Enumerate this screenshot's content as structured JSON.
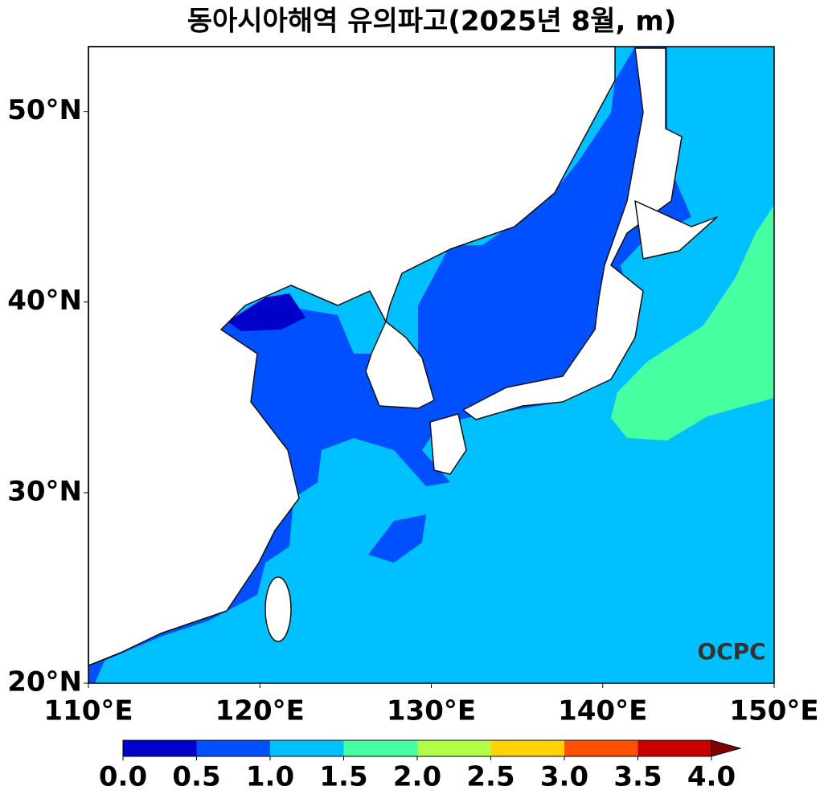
{
  "chart_data": {
    "type": "map",
    "title": "동아시아해역 유의파고(2025년 8월, m)",
    "xlim": [
      110,
      150
    ],
    "ylim": [
      20,
      53.4
    ],
    "xticks": [
      {
        "value": 110,
        "label": "110°E"
      },
      {
        "value": 120,
        "label": "120°E"
      },
      {
        "value": 130,
        "label": "130°E"
      },
      {
        "value": 140,
        "label": "140°E"
      },
      {
        "value": 150,
        "label": "150°E"
      }
    ],
    "yticks": [
      {
        "value": 20,
        "label": "20°N"
      },
      {
        "value": 30,
        "label": "30°N"
      },
      {
        "value": 40,
        "label": "40°N"
      },
      {
        "value": 50,
        "label": "50°N"
      }
    ],
    "colorbar": {
      "levels": [
        {
          "value": 0,
          "label": "0.0"
        },
        {
          "value": 0.5,
          "label": "0.5"
        },
        {
          "value": 1,
          "label": "1.0"
        },
        {
          "value": 1.5,
          "label": "1.5"
        },
        {
          "value": 2,
          "label": "2.0"
        },
        {
          "value": 2.5,
          "label": "2.5"
        },
        {
          "value": 3,
          "label": "3.0"
        },
        {
          "value": 3.5,
          "label": "3.5"
        },
        {
          "value": 4,
          "label": "4.0"
        }
      ],
      "colors": [
        "#0000c8",
        "#0050ff",
        "#00c0ff",
        "#46ffa0",
        "#b0ff46",
        "#ffd200",
        "#ff5000",
        "#c80000"
      ],
      "extend_color": "#800000"
    },
    "logo": "OCPC"
  }
}
